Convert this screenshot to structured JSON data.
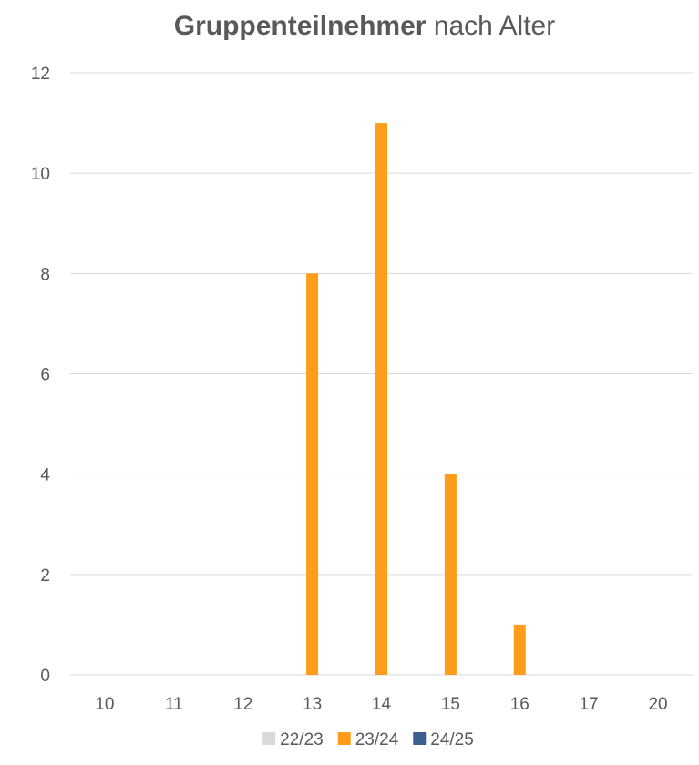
{
  "chart_data": {
    "type": "bar",
    "title_bold": "Gruppenteilnehmer",
    "title_rest": "nach Alter",
    "categories": [
      "10",
      "11",
      "12",
      "13",
      "14",
      "15",
      "16",
      "17",
      "20"
    ],
    "series": [
      {
        "name": "22/23",
        "color": "#d9d9d9",
        "values": [
          0,
          0,
          0,
          0,
          0,
          0,
          0,
          0,
          0
        ]
      },
      {
        "name": "23/24",
        "color": "#ff9c1a",
        "values": [
          0,
          0,
          0,
          8,
          11,
          4,
          1,
          0,
          0
        ]
      },
      {
        "name": "24/25",
        "color": "#3b5f8e",
        "values": [
          0,
          0,
          0,
          0,
          0,
          0,
          0,
          0,
          0
        ]
      }
    ],
    "yticks": [
      0,
      2,
      4,
      6,
      8,
      10,
      12
    ],
    "ylim": [
      0,
      12
    ],
    "grid": true,
    "legend_position": "bottom"
  }
}
